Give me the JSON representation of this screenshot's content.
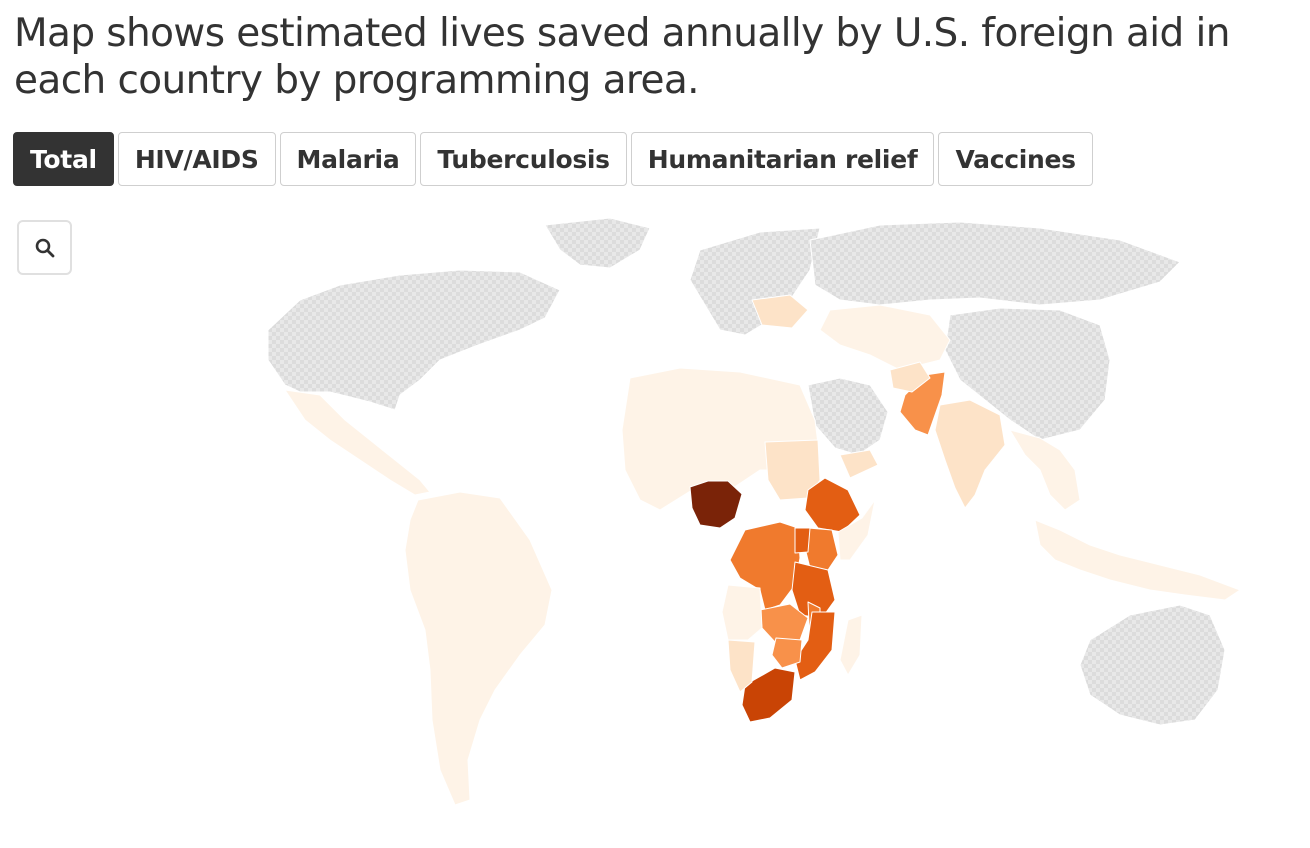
{
  "title": "Map shows estimated lives saved annually by U.S. foreign aid in each country by programming area.",
  "tabs": [
    {
      "label": "Total",
      "active": true
    },
    {
      "label": "HIV/AIDS",
      "active": false
    },
    {
      "label": "Malaria",
      "active": false
    },
    {
      "label": "Tuberculosis",
      "active": false
    },
    {
      "label": "Humanitarian relief",
      "active": false
    },
    {
      "label": "Vaccines",
      "active": false
    }
  ],
  "zoom_control": {
    "icon": "search-icon"
  },
  "map": {
    "colors": {
      "no_data": "#dcdcdc",
      "level_1": "#fef3e7",
      "level_2": "#fde3c8",
      "level_3": "#fcc99a",
      "level_4": "#f8914a",
      "level_5": "#f07a2d",
      "level_6": "#e35e13",
      "level_7": "#c94405",
      "level_8": "#7a2308"
    },
    "regions": [
      {
        "name": "Canada & USA",
        "level": "no_data"
      },
      {
        "name": "Greenland",
        "level": "no_data"
      },
      {
        "name": "Europe",
        "level": "no_data"
      },
      {
        "name": "Russia",
        "level": "no_data"
      },
      {
        "name": "China",
        "level": "no_data"
      },
      {
        "name": "Australia",
        "level": "no_data"
      },
      {
        "name": "Saudi Arabia",
        "level": "no_data"
      },
      {
        "name": "Mexico & Central America",
        "level": "level_1"
      },
      {
        "name": "South America",
        "level": "level_1"
      },
      {
        "name": "North Africa",
        "level": "level_1"
      },
      {
        "name": "Ukraine",
        "level": "level_2"
      },
      {
        "name": "Central Asia",
        "level": "level_1"
      },
      {
        "name": "India",
        "level": "level_2"
      },
      {
        "name": "Pakistan",
        "level": "level_4"
      },
      {
        "name": "Afghanistan",
        "level": "level_2"
      },
      {
        "name": "Southeast Asia",
        "level": "level_1"
      },
      {
        "name": "Indonesia",
        "level": "level_1"
      },
      {
        "name": "Nigeria",
        "level": "level_8"
      },
      {
        "name": "Sudan",
        "level": "level_2"
      },
      {
        "name": "Ethiopia",
        "level": "level_6"
      },
      {
        "name": "DR Congo",
        "level": "level_5"
      },
      {
        "name": "Kenya",
        "level": "level_5"
      },
      {
        "name": "Tanzania",
        "level": "level_6"
      },
      {
        "name": "Uganda",
        "level": "level_6"
      },
      {
        "name": "Zambia",
        "level": "level_4"
      },
      {
        "name": "Malawi",
        "level": "level_5"
      },
      {
        "name": "Mozambique",
        "level": "level_6"
      },
      {
        "name": "Zimbabwe",
        "level": "level_4"
      },
      {
        "name": "South Africa",
        "level": "level_7"
      },
      {
        "name": "Angola",
        "level": "level_1"
      },
      {
        "name": "Namibia",
        "level": "level_2"
      },
      {
        "name": "Madagascar",
        "level": "level_1"
      },
      {
        "name": "Somalia",
        "level": "level_1"
      },
      {
        "name": "Yemen",
        "level": "level_2"
      }
    ]
  }
}
